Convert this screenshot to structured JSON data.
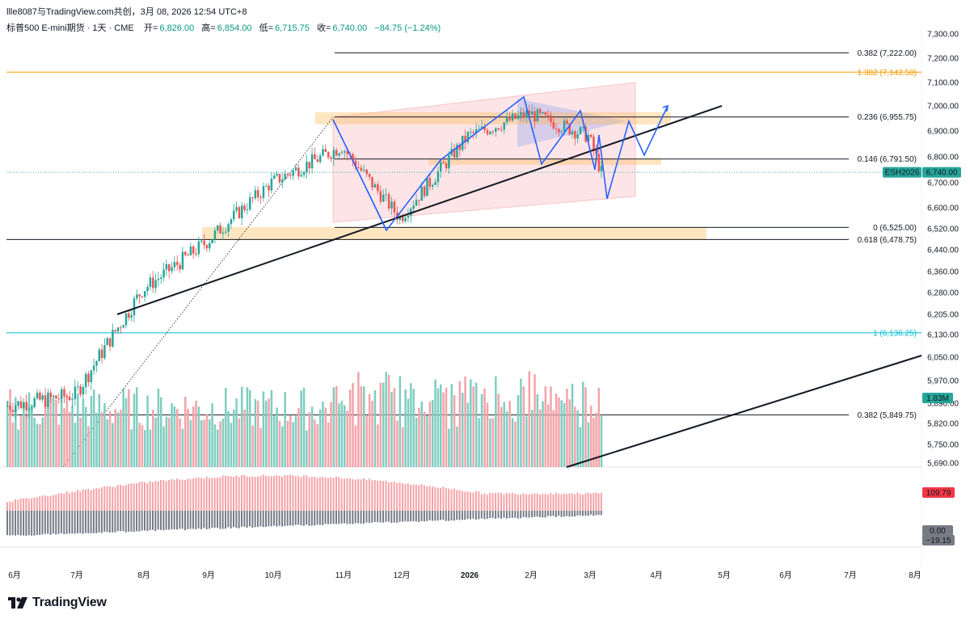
{
  "header": {
    "attribution": "llle8087与TradingView.com共创，3月 08, 2026 12:54 UTC+8",
    "symbol_desc": "标普500 E-mini期货 · 1天 · CME",
    "ohlc": [
      {
        "k": "开=",
        "v": "6,826.00"
      },
      {
        "k": "高=",
        "v": "6,854.00"
      },
      {
        "k": "低=",
        "v": "6,715.75"
      },
      {
        "k": "收=",
        "v": "6,740.00"
      },
      {
        "k": "",
        "v": "−84.75 (−1.24%)"
      }
    ]
  },
  "brand": {
    "name": "TradingView"
  },
  "colors": {
    "up": "#26a69a",
    "down": "#ef5350",
    "up_vol": "#7fcdc1",
    "down_vol": "#f4a3a8",
    "pattern_line": "#2962ff",
    "fib": "#131722",
    "fib_orange": "#ff9800",
    "fib_teal": "#00bcd4"
  },
  "chart_data": {
    "type": "candlestick",
    "symbol": "ESH2026",
    "interval": "1天",
    "price_axis_ticks": [
      "7,300.00",
      "7,200.00",
      "7,100.00",
      "7,000.00",
      "6,900.00",
      "6,800.00",
      "6,700.00",
      "6,600.00",
      "6,520.00",
      "6,440.00",
      "6,360.00",
      "6,280.00",
      "6,205.00",
      "6,130.00",
      "6,050.00",
      "5,970.00",
      "5,890.00",
      "5,820.00",
      "5,750.00",
      "5,690.00"
    ],
    "time_axis_ticks": [
      "6月",
      "7月",
      "8月",
      "9月",
      "10月",
      "11月",
      "12月",
      "2026",
      "2月",
      "3月",
      "4月",
      "5月",
      "6月",
      "7月",
      "8月"
    ],
    "ylim": [
      5690,
      7300
    ],
    "last_price": {
      "label": "ESH2026",
      "value": "6,740.00"
    },
    "volume_badge": "1.83M",
    "indicator_badges": [
      "109.79",
      "0.00",
      "−19.15"
    ],
    "fib_levels": [
      {
        "label": "0.382 (7,222.00)",
        "price": 7222,
        "color": "#131722"
      },
      {
        "label": "1.382 (7,142.50)",
        "price": 7142.5,
        "color": "#ff9800"
      },
      {
        "label": "0.236 (6,955.75)",
        "price": 6955.75,
        "color": "#131722"
      },
      {
        "label": "0.146 (6,791.50)",
        "price": 6791.5,
        "color": "#131722"
      },
      {
        "label": "0 (6,525.00)",
        "price": 6525,
        "color": "#131722"
      },
      {
        "label": "0.618 (6,478.75)",
        "price": 6478.75,
        "color": "#131722"
      },
      {
        "label": "1 (6,136.25)",
        "price": 6136.25,
        "color": "#00bcd4"
      },
      {
        "label": "0.382 (5,849.75)",
        "price": 5849.75,
        "color": "#131722"
      }
    ],
    "monthly_closes": [
      {
        "month": "6月",
        "value": 5920
      },
      {
        "month": "7月",
        "value": 6290
      },
      {
        "month": "8月",
        "value": 6470
      },
      {
        "month": "9月",
        "value": 6700
      },
      {
        "month": "10月",
        "value": 6840
      },
      {
        "month": "11月",
        "value": 6560
      },
      {
        "month": "12月",
        "value": 6880
      },
      {
        "month": "2026",
        "value": 6970
      },
      {
        "month": "2月",
        "value": 6880
      },
      {
        "month": "3月",
        "value": 6740
      }
    ]
  }
}
